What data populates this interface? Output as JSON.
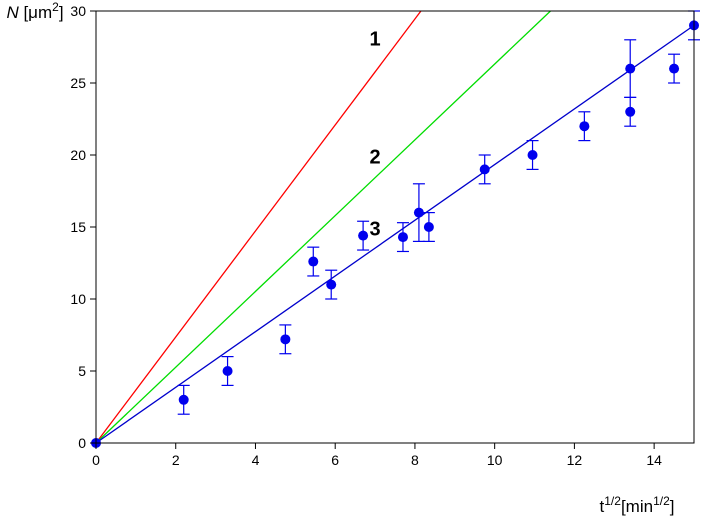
{
  "chart_data": {
    "type": "scatter",
    "title": "",
    "xlabel": {
      "base": "t",
      "sup": "1/2",
      "unit_base": "[min",
      "unit_sup": "1/2",
      "unit_close": "]"
    },
    "ylabel": {
      "italic": "N",
      "open": " [",
      "unit": "μm",
      "sup": "2",
      "close": "]"
    },
    "xlim": [
      0,
      15
    ],
    "ylim": [
      0,
      30
    ],
    "xticks": [
      0,
      2,
      4,
      6,
      8,
      10,
      12,
      14
    ],
    "yticks": [
      0,
      5,
      10,
      15,
      20,
      25,
      30
    ],
    "grid": false,
    "lines": [
      {
        "name": "1",
        "color": "#ff0000",
        "x": [
          0,
          8.15
        ],
        "y": [
          0,
          30
        ]
      },
      {
        "name": "2",
        "color": "#00dd00",
        "x": [
          0,
          11.4
        ],
        "y": [
          0,
          30
        ]
      },
      {
        "name": "3",
        "color": "#0000cc",
        "x": [
          0,
          15
        ],
        "y": [
          0,
          29
        ]
      }
    ],
    "line_labels": [
      {
        "text": "1",
        "x": 7.0,
        "y": 27.6
      },
      {
        "text": "2",
        "x": 7.0,
        "y": 19.4
      },
      {
        "text": "3",
        "x": 7.0,
        "y": 14.4
      }
    ],
    "points": {
      "color": "#0000ee",
      "x": [
        0,
        2.2,
        3.3,
        4.75,
        5.45,
        5.9,
        6.7,
        7.7,
        8.1,
        8.35,
        9.75,
        10.95,
        12.25,
        13.4,
        13.4,
        14.5,
        15.0
      ],
      "y": [
        0,
        3.0,
        5.0,
        7.2,
        12.6,
        11.0,
        14.4,
        14.3,
        16.0,
        15.0,
        19.0,
        20.0,
        22.0,
        23.0,
        26.0,
        26.0,
        29.0
      ],
      "error": [
        0,
        1.0,
        1.0,
        1.0,
        1.0,
        1.0,
        1.0,
        1.0,
        2.0,
        1.0,
        1.0,
        1.0,
        1.0,
        1.0,
        2.0,
        1.0,
        1.0
      ]
    }
  }
}
